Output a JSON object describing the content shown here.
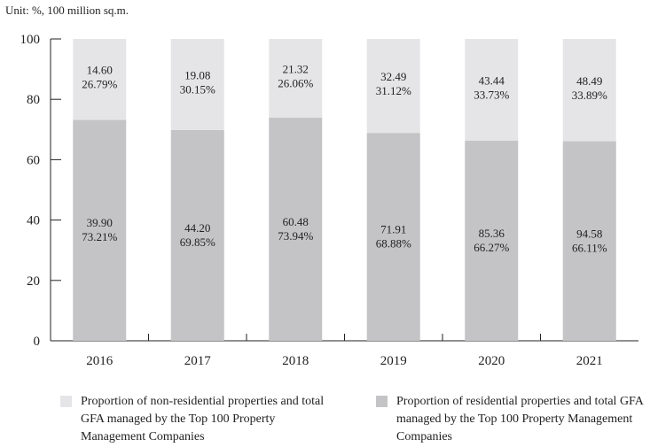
{
  "unit_label": "Unit: %, 100 million sq.m.",
  "colors": {
    "non_residential": "#e5e5e7",
    "residential": "#c4c4c6",
    "axis": "#222222"
  },
  "legend": [
    {
      "label": "Proportion of non-residential properties and total GFA managed by the Top 100 Property Management Companies",
      "color": "#e5e5e7"
    },
    {
      "label": "Proportion of residential properties and total GFA managed by the Top 100 Property Management Companies",
      "color": "#c4c4c6"
    }
  ],
  "chart_data": {
    "type": "bar",
    "stacked": true,
    "categories": [
      "2016",
      "2017",
      "2018",
      "2019",
      "2020",
      "2021"
    ],
    "ylim": [
      0,
      100
    ],
    "yticks": [
      0,
      20,
      40,
      60,
      80,
      100
    ],
    "series": [
      {
        "name": "Proportion of residential properties and total GFA managed by the Top 100 Property Management Companies",
        "percent": [
          73.21,
          69.85,
          73.94,
          68.88,
          66.27,
          66.11
        ],
        "gfa": [
          39.9,
          44.2,
          60.48,
          71.91,
          85.36,
          94.58
        ],
        "labels_top": [
          "39.90",
          "44.20",
          "60.48",
          "71.91",
          "85.36",
          "94.58"
        ],
        "labels_bottom": [
          "73.21%",
          "69.85%",
          "73.94%",
          "68.88%",
          "66.27%",
          "66.11%"
        ]
      },
      {
        "name": "Proportion of non-residential properties and total GFA managed by the Top 100 Property Management Companies",
        "percent": [
          26.79,
          30.15,
          26.06,
          31.12,
          33.73,
          33.89
        ],
        "gfa": [
          14.6,
          19.08,
          21.32,
          32.49,
          43.44,
          48.49
        ],
        "labels_top": [
          "14.60",
          "19.08",
          "21.32",
          "32.49",
          "43.44",
          "48.49"
        ],
        "labels_bottom": [
          "26.79%",
          "30.15%",
          "26.06%",
          "31.12%",
          "33.73%",
          "33.89%"
        ]
      }
    ]
  }
}
